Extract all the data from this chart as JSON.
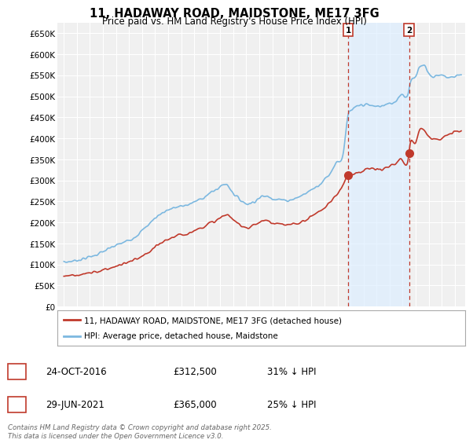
{
  "title": "11, HADAWAY ROAD, MAIDSTONE, ME17 3FG",
  "subtitle": "Price paid vs. HM Land Registry's House Price Index (HPI)",
  "ylabel_ticks": [
    "£0",
    "£50K",
    "£100K",
    "£150K",
    "£200K",
    "£250K",
    "£300K",
    "£350K",
    "£400K",
    "£450K",
    "£500K",
    "£550K",
    "£600K",
    "£650K"
  ],
  "ytick_values": [
    0,
    50000,
    100000,
    150000,
    200000,
    250000,
    300000,
    350000,
    400000,
    450000,
    500000,
    550000,
    600000,
    650000
  ],
  "hpi_color": "#7cb8e0",
  "price_color": "#c0392b",
  "shade_color": "#ddeeff",
  "marker1_date": 2016.82,
  "marker1_price": 312500,
  "marker1_label": "1",
  "marker2_date": 2021.49,
  "marker2_price": 365000,
  "marker2_label": "2",
  "legend_line1": "11, HADAWAY ROAD, MAIDSTONE, ME17 3FG (detached house)",
  "legend_line2": "HPI: Average price, detached house, Maidstone",
  "ann1_date": "24-OCT-2016",
  "ann1_price": "£312,500",
  "ann1_hpi": "31% ↓ HPI",
  "ann2_date": "29-JUN-2021",
  "ann2_price": "£365,000",
  "ann2_hpi": "25% ↓ HPI",
  "footer": "Contains HM Land Registry data © Crown copyright and database right 2025.\nThis data is licensed under the Open Government Licence v3.0.",
  "background_color": "#ffffff",
  "plot_bg_color": "#f0f0f0",
  "grid_color": "#ffffff",
  "xlim": [
    1994.5,
    2025.8
  ],
  "ylim": [
    0,
    675000
  ]
}
